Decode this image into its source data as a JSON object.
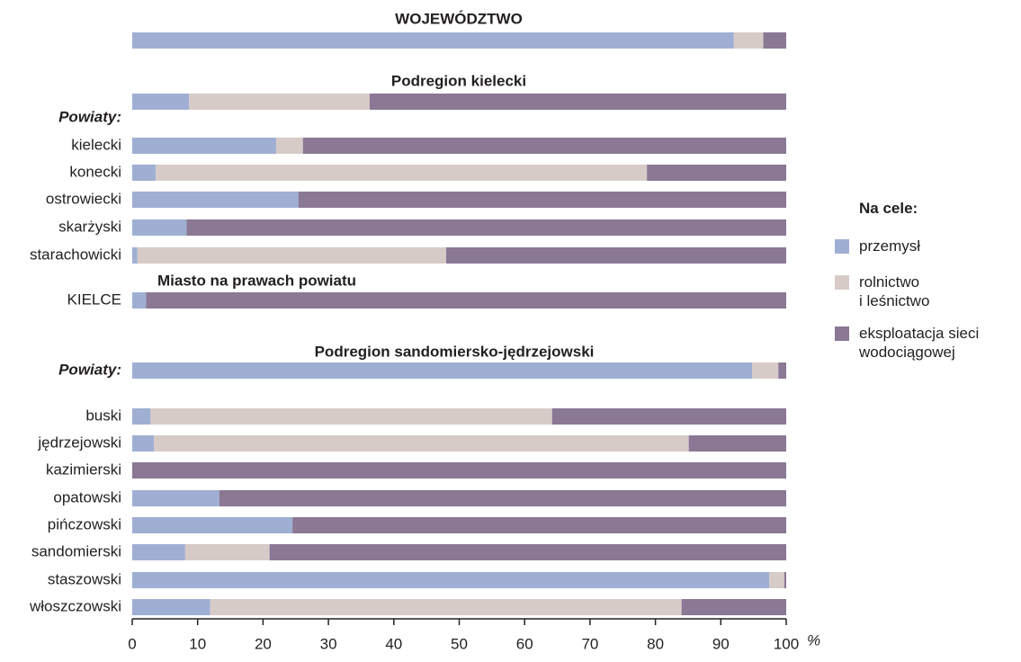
{
  "chart_data": {
    "type": "stacked_barh",
    "headings": [
      "WOJEWÓDZTWO",
      "Podregion kielecki",
      "Miasto na prawach powiatu",
      "Podregion sandomiersko-jędrzejowski"
    ],
    "group_label": "Powiaty:",
    "categories": [
      null,
      null,
      "kielecki",
      "konecki",
      "ostrowiecki",
      "skarżyski",
      "starachowicki",
      "KIELCE",
      "Powiaty:",
      "buski",
      "jędrzejowski",
      "kazimierski",
      "opatowski",
      "pińczowski",
      "sandomierski",
      "staszowski",
      "włoszczowski"
    ],
    "series": [
      {
        "name": "przemysł",
        "color": "#9fafd3",
        "values": [
          92.0,
          8.7,
          22.0,
          3.6,
          25.4,
          8.3,
          0.8,
          2.1,
          94.8,
          2.8,
          3.3,
          0,
          13.3,
          24.5,
          8.1,
          97.4,
          11.9
        ]
      },
      {
        "name": "rolnictwo\ni leśnictwo",
        "color": "#d7cbc8",
        "values": [
          4.5,
          27.6,
          4.1,
          75.1,
          0,
          0,
          47.2,
          0,
          4.0,
          61.4,
          81.8,
          0,
          0,
          0,
          12.9,
          2.3,
          72.1
        ]
      },
      {
        "name": "eksploatacja sieci\nwodociągowej",
        "color": "#8a7895",
        "values": [
          3.5,
          63.7,
          73.9,
          21.3,
          74.6,
          91.7,
          52.0,
          97.9,
          1.2,
          35.8,
          14.9,
          100,
          86.7,
          75.5,
          79.0,
          0.3,
          16.0
        ]
      }
    ],
    "legend_title": "Na cele:",
    "xlim": [
      0,
      100
    ],
    "xticks": [
      0,
      10,
      20,
      30,
      40,
      50,
      60,
      70,
      80,
      90,
      100
    ],
    "x_unit": "%"
  }
}
